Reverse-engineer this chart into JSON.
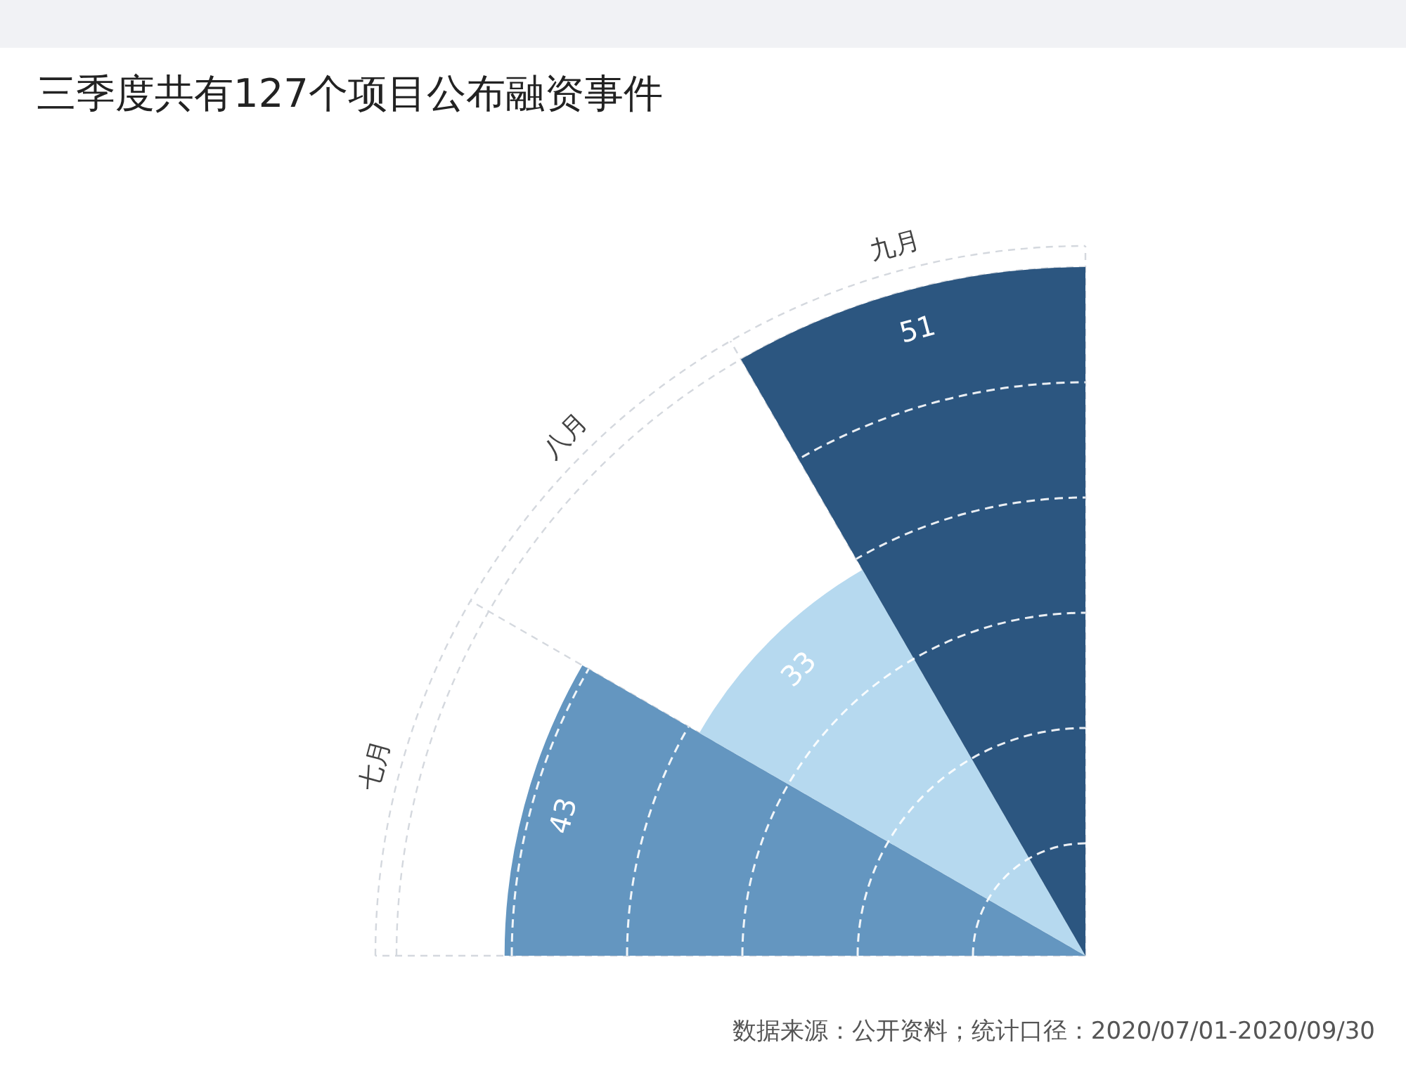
{
  "chart_data": {
    "type": "other",
    "title": "三季度共有127个项目公布融资事件",
    "categories": [
      "七月",
      "八月",
      "九月"
    ],
    "values": [
      43,
      33,
      51
    ],
    "colors": [
      "#6496c0",
      "#b6d9ef",
      "#2c5680"
    ],
    "data_labels": true,
    "annotations": [
      "数据来源：公开资料；统计口径：2020/07/01-2020/09/30"
    ]
  }
}
